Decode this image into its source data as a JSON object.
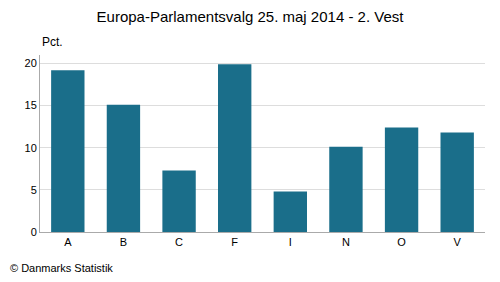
{
  "chart_data": {
    "type": "bar",
    "title": "Europa-Parlamentsvalg 25. maj 2014 - 2. Vest",
    "ylabel": "Pct.",
    "annotations": [
      "© Danmarks Statistik"
    ],
    "categories": [
      "A",
      "B",
      "C",
      "F",
      "I",
      "N",
      "O",
      "V"
    ],
    "values": [
      19.2,
      15.1,
      7.3,
      19.9,
      4.8,
      10.1,
      12.4,
      11.8
    ],
    "color": "#1a6e8a",
    "ylim": [
      0,
      21
    ],
    "yticks": [
      0,
      5,
      10,
      15,
      20
    ],
    "grid": true
  }
}
